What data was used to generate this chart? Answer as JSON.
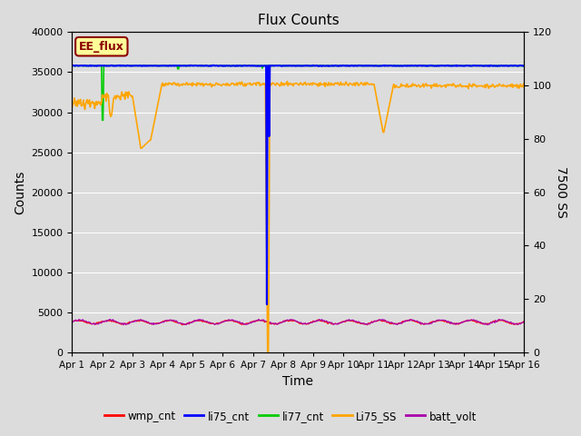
{
  "title": "Flux Counts",
  "xlabel": "Time",
  "ylabel_left": "Counts",
  "ylabel_right": "7500 SS",
  "xlim": [
    0,
    15
  ],
  "ylim_left": [
    0,
    40000
  ],
  "ylim_right": [
    0,
    120
  ],
  "yticks_left": [
    0,
    5000,
    10000,
    15000,
    20000,
    25000,
    30000,
    35000,
    40000
  ],
  "yticks_right": [
    0,
    20,
    40,
    60,
    80,
    100,
    120
  ],
  "xtick_positions": [
    0,
    1,
    2,
    3,
    4,
    5,
    6,
    7,
    8,
    9,
    10,
    11,
    12,
    13,
    14,
    15
  ],
  "xtick_labels": [
    "Apr 1",
    "Apr 2",
    "Apr 3",
    "Apr 4",
    "Apr 5",
    "Apr 6",
    "Apr 7",
    "Apr 8",
    "Apr 9",
    "Apr 10",
    "Apr 11",
    "Apr 12",
    "Apr 13",
    "Apr 14",
    "Apr 15",
    "Apr 16"
  ],
  "bg_color": "#dcdcdc",
  "annotation_text": "EE_flux",
  "annotation_color": "#8B0000",
  "annotation_bg": "#ffff99",
  "annotation_border": "#8B0000",
  "series": {
    "wmp_cnt": {
      "color": "#ff0000",
      "label": "wmp_cnt"
    },
    "li75_cnt": {
      "color": "#0000ff",
      "label": "li75_cnt"
    },
    "li77_cnt": {
      "color": "#00cc00",
      "label": "li77_cnt"
    },
    "Li75_SS": {
      "color": "#ffa500",
      "label": "Li75_SS"
    },
    "batt_volt": {
      "color": "#aa00aa",
      "label": "batt_volt"
    }
  },
  "figsize": [
    6.4,
    4.8
  ],
  "dpi": 100
}
